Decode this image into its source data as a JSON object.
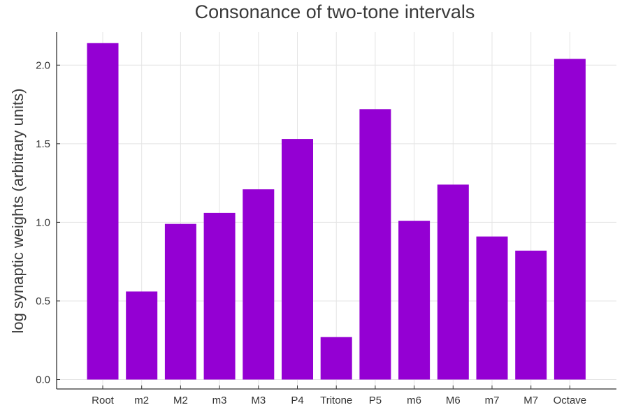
{
  "chart_data": {
    "type": "bar",
    "title": "Consonance of two-tone intervals",
    "xlabel": "",
    "ylabel": "log synaptic weights (arbitrary units)",
    "categories": [
      "Root",
      "m2",
      "M2",
      "m3",
      "M3",
      "P4",
      "Tritone",
      "P5",
      "m6",
      "M6",
      "m7",
      "M7",
      "Octave"
    ],
    "values": [
      2.14,
      0.56,
      0.99,
      1.06,
      1.21,
      1.53,
      0.27,
      1.72,
      1.01,
      1.24,
      0.91,
      0.82,
      2.04
    ],
    "ylim": [
      -0.06,
      2.21
    ],
    "yticks": [
      0.0,
      0.5,
      1.0,
      1.5,
      2.0
    ],
    "ytick_labels": [
      "0.0",
      "0.5",
      "1.0",
      "1.5",
      "2.0"
    ],
    "bar_color": "#9400d3",
    "grid": true,
    "legend": false
  }
}
